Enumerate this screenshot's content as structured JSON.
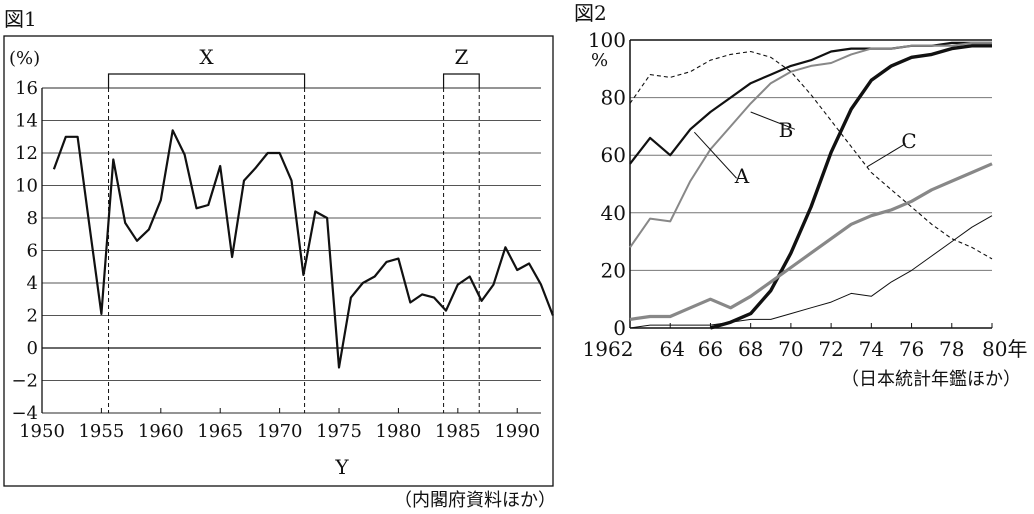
{
  "source_note": "（内閣府資料ほか）",
  "chart_data": [
    {
      "type": "line",
      "title": "図1",
      "unit_label": "(%)",
      "xlabel": "Y",
      "ylim": [
        -4,
        16
      ],
      "xlim": [
        1950,
        1992
      ],
      "yticks": [
        "−4",
        "−2",
        "0",
        "2",
        "4",
        "6",
        "8",
        "10",
        "12",
        "14",
        "16"
      ],
      "xticks": [
        "1950",
        "1955",
        "1960",
        "1965",
        "1970",
        "1975",
        "1980",
        "1985",
        "1990"
      ],
      "grid": "horizontal",
      "periods": [
        {
          "label": "X",
          "start": 1955.6,
          "end": 1972.1
        },
        {
          "label": "Z",
          "start": 1983.8,
          "end": 1986.8
        }
      ],
      "series": [
        {
          "values": [
            [
              1951,
              11.0
            ],
            [
              1952,
              13.0
            ],
            [
              1953,
              13.0
            ],
            [
              1954,
              7.5
            ],
            [
              1955,
              2.1
            ],
            [
              1956,
              11.6
            ],
            [
              1957,
              7.7
            ],
            [
              1958,
              6.6
            ],
            [
              1959,
              7.3
            ],
            [
              1960,
              9.1
            ],
            [
              1961,
              13.4
            ],
            [
              1962,
              11.9
            ],
            [
              1963,
              8.6
            ],
            [
              1964,
              8.8
            ],
            [
              1965,
              11.2
            ],
            [
              1966,
              5.6
            ],
            [
              1967,
              10.3
            ],
            [
              1968,
              11.1
            ],
            [
              1969,
              12.0
            ],
            [
              1970,
              12.0
            ],
            [
              1971,
              10.3
            ],
            [
              1972,
              4.5
            ],
            [
              1973,
              8.4
            ],
            [
              1974,
              8.0
            ],
            [
              1975,
              -1.2
            ],
            [
              1976,
              3.1
            ],
            [
              1977,
              4.0
            ],
            [
              1978,
              4.4
            ],
            [
              1979,
              5.3
            ],
            [
              1980,
              5.5
            ],
            [
              1981,
              2.8
            ],
            [
              1982,
              3.3
            ],
            [
              1983,
              3.1
            ],
            [
              1984,
              2.3
            ],
            [
              1985,
              3.9
            ],
            [
              1986,
              4.4
            ],
            [
              1987,
              2.9
            ],
            [
              1988,
              3.9
            ],
            [
              1989,
              6.2
            ],
            [
              1990,
              4.8
            ],
            [
              1991,
              5.2
            ],
            [
              1992,
              3.9
            ],
            [
              1993,
              2.0
            ]
          ]
        }
      ]
    },
    {
      "type": "line",
      "title": "図2",
      "unit_label": "%",
      "ylim": [
        0,
        100
      ],
      "xlim": [
        1962,
        1980
      ],
      "yticks": [
        "0",
        "20",
        "40",
        "60",
        "80",
        "100"
      ],
      "xticks": [
        "1962",
        "64",
        "66",
        "68",
        "70",
        "72",
        "74",
        "76",
        "78",
        "80年"
      ],
      "grid": "horizontal",
      "annotations": [
        "A",
        "B",
        "C"
      ],
      "series": [
        {
          "name": "A",
          "style": "black-medium",
          "values": [
            [
              1962,
              57
            ],
            [
              1963,
              66
            ],
            [
              1964,
              60
            ],
            [
              1965,
              69
            ],
            [
              1966,
              75
            ],
            [
              1967,
              80
            ],
            [
              1968,
              85
            ],
            [
              1969,
              88
            ],
            [
              1970,
              91
            ],
            [
              1971,
              93
            ],
            [
              1972,
              96
            ],
            [
              1973,
              97
            ],
            [
              1974,
              97
            ],
            [
              1975,
              97
            ],
            [
              1976,
              98
            ],
            [
              1977,
              98
            ],
            [
              1978,
              99
            ],
            [
              1979,
              99
            ],
            [
              1980,
              99
            ]
          ]
        },
        {
          "name": "B",
          "style": "gray-thin",
          "values": [
            [
              1962,
              28
            ],
            [
              1963,
              38
            ],
            [
              1964,
              37
            ],
            [
              1965,
              51
            ],
            [
              1966,
              62
            ],
            [
              1967,
              70
            ],
            [
              1968,
              78
            ],
            [
              1969,
              85
            ],
            [
              1970,
              89
            ],
            [
              1971,
              91
            ],
            [
              1972,
              92
            ],
            [
              1973,
              95
            ],
            [
              1974,
              97
            ],
            [
              1975,
              97
            ],
            [
              1976,
              98
            ],
            [
              1977,
              98
            ],
            [
              1978,
              98
            ],
            [
              1979,
              99
            ],
            [
              1980,
              99
            ]
          ]
        },
        {
          "name": "C",
          "style": "black-dashed",
          "values": [
            [
              1962,
              78
            ],
            [
              1963,
              88
            ],
            [
              1964,
              87
            ],
            [
              1965,
              89
            ],
            [
              1966,
              93
            ],
            [
              1967,
              95
            ],
            [
              1968,
              96
            ],
            [
              1969,
              94
            ],
            [
              1970,
              89
            ],
            [
              1971,
              81
            ],
            [
              1972,
              72
            ],
            [
              1973,
              63
            ],
            [
              1974,
              54
            ],
            [
              1975,
              48
            ],
            [
              1976,
              42
            ],
            [
              1977,
              36
            ],
            [
              1978,
              31
            ],
            [
              1979,
              28
            ],
            [
              1980,
              24
            ]
          ]
        },
        {
          "style": "black-thick",
          "values": [
            [
              1966,
              0
            ],
            [
              1967,
              2
            ],
            [
              1968,
              5
            ],
            [
              1969,
              13
            ],
            [
              1970,
              26
            ],
            [
              1971,
              42
            ],
            [
              1972,
              61
            ],
            [
              1973,
              76
            ],
            [
              1974,
              86
            ],
            [
              1975,
              91
            ],
            [
              1976,
              94
            ],
            [
              1977,
              95
            ],
            [
              1978,
              97
            ],
            [
              1979,
              98
            ],
            [
              1980,
              98
            ]
          ]
        },
        {
          "style": "gray-thick",
          "values": [
            [
              1962,
              3
            ],
            [
              1963,
              4
            ],
            [
              1964,
              4
            ],
            [
              1965,
              7
            ],
            [
              1966,
              10
            ],
            [
              1967,
              7
            ],
            [
              1968,
              11
            ],
            [
              1969,
              16
            ],
            [
              1970,
              21
            ],
            [
              1971,
              26
            ],
            [
              1972,
              31
            ],
            [
              1973,
              36
            ],
            [
              1974,
              39
            ],
            [
              1975,
              41
            ],
            [
              1976,
              44
            ],
            [
              1977,
              48
            ],
            [
              1978,
              51
            ],
            [
              1979,
              54
            ],
            [
              1980,
              57
            ]
          ]
        },
        {
          "style": "black-thin",
          "values": [
            [
              1962,
              0
            ],
            [
              1963,
              1
            ],
            [
              1964,
              1
            ],
            [
              1965,
              1
            ],
            [
              1966,
              1
            ],
            [
              1967,
              2
            ],
            [
              1968,
              3
            ],
            [
              1969,
              3
            ],
            [
              1970,
              5
            ],
            [
              1971,
              7
            ],
            [
              1972,
              9
            ],
            [
              1973,
              12
            ],
            [
              1974,
              11
            ],
            [
              1975,
              16
            ],
            [
              1976,
              20
            ],
            [
              1977,
              25
            ],
            [
              1978,
              30
            ],
            [
              1979,
              35
            ],
            [
              1980,
              39
            ]
          ]
        }
      ]
    }
  ]
}
